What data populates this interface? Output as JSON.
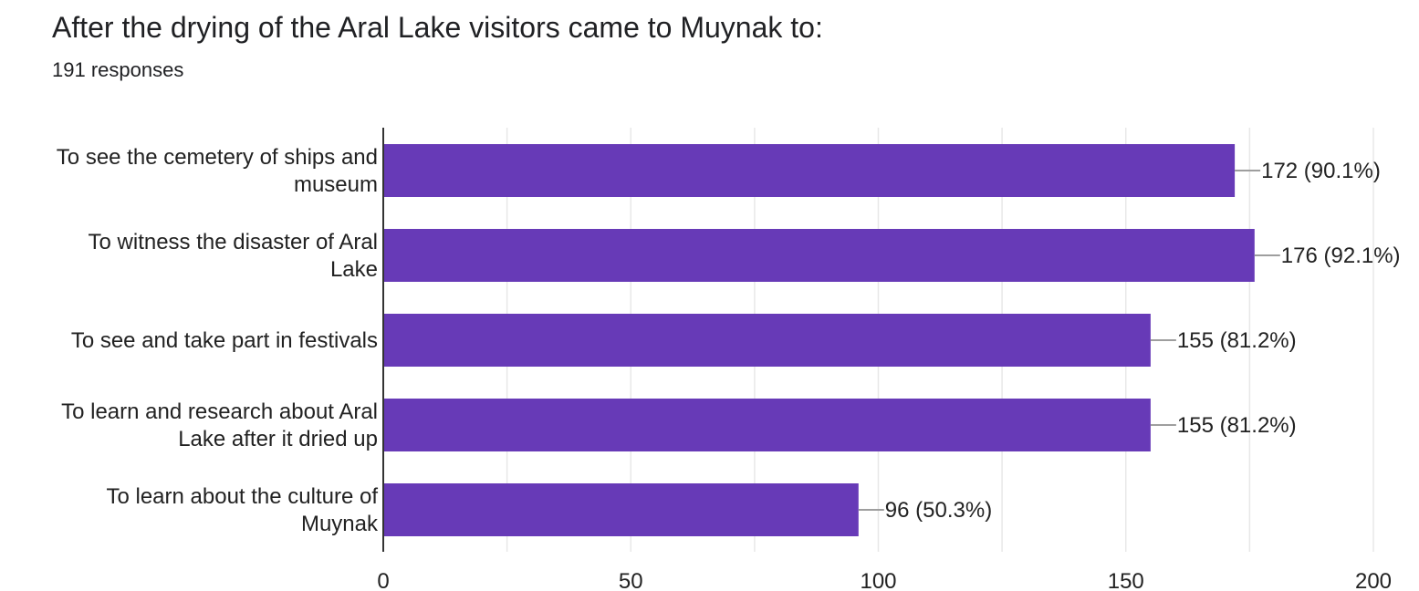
{
  "header": {
    "title": "After the drying of the Aral Lake visitors came to Muynak to:",
    "responses": "191 responses"
  },
  "colors": {
    "bar": "#673ab7",
    "grid": "#e8e8e8",
    "axis": "#333333",
    "leader": "#9e9e9e"
  },
  "chart_data": {
    "type": "bar",
    "orientation": "horizontal",
    "categories": [
      [
        "To see the cemetery of ships and",
        "museum"
      ],
      [
        "To witness the disaster of Aral",
        "Lake"
      ],
      [
        "To see and take part in festivals"
      ],
      [
        "To learn and research about Aral",
        "Lake after it dried up"
      ],
      [
        "To learn about the culture of",
        "Muynak"
      ]
    ],
    "values": [
      172,
      176,
      155,
      155,
      96
    ],
    "data_labels": [
      "172 (90.1%)",
      "176 (92.1%)",
      "155 (81.2%)",
      "155 (81.2%)",
      "96 (50.3%)"
    ],
    "xlim": [
      0,
      200
    ],
    "xticks": [
      0,
      50,
      100,
      150,
      200
    ],
    "grid": true,
    "legend": "none"
  }
}
